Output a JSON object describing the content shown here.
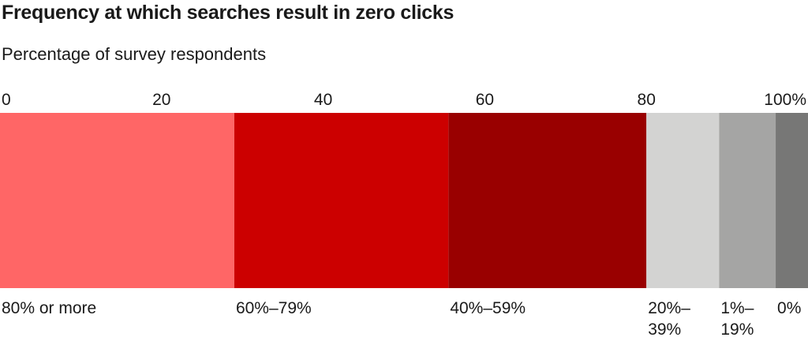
{
  "chart_data": {
    "type": "bar",
    "orientation": "horizontal",
    "stacked": true,
    "title": "Frequency at which searches result in zero clicks",
    "subtitle": "Percentage of survey respondents",
    "xlabel": "",
    "ylabel": "",
    "xlim": [
      0,
      100
    ],
    "x_ticks": [
      "0",
      "20",
      "40",
      "60",
      "80",
      "100%"
    ],
    "x_tick_values": [
      0,
      20,
      40,
      60,
      80,
      100
    ],
    "grid": false,
    "legend": "none",
    "series": [
      {
        "name": "80% or more",
        "label_lines": [
          "80% or more"
        ],
        "value": 29,
        "color": "#ff6666"
      },
      {
        "name": "60%–79%",
        "label_lines": [
          "60%–79%"
        ],
        "value": 26.5,
        "color": "#cc0000"
      },
      {
        "name": "40%–59%",
        "label_lines": [
          "40%–59%"
        ],
        "value": 24.5,
        "color": "#990000"
      },
      {
        "name": "20%–39%",
        "label_lines": [
          "20%–",
          "39%"
        ],
        "value": 9,
        "color": "#d3d3d2"
      },
      {
        "name": "1%–19%",
        "label_lines": [
          "1%–",
          "19%"
        ],
        "value": 7,
        "color": "#a5a5a4"
      },
      {
        "name": "0%",
        "label_lines": [
          "0%"
        ],
        "value": 4,
        "color": "#777776"
      }
    ]
  }
}
